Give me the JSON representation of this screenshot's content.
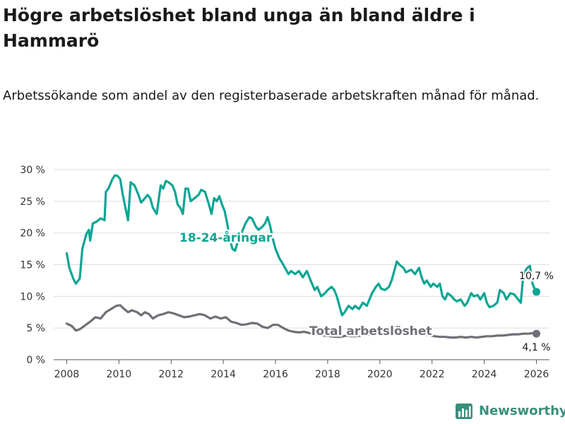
{
  "title": "Högre arbetslöshet bland unga än bland äldre i Hammarö",
  "subtitle": "Arbetssökande som andel av den registerbaserade arbetskraften månad för månad.",
  "brand": "Newsworthy",
  "colors": {
    "youth": "#0ea594",
    "total": "#6f6f76",
    "grid": "#dddddd",
    "brand": "#3a8f7c"
  },
  "chart_data": {
    "type": "line",
    "title": "Högre arbetslöshet bland unga än bland äldre i Hammarö",
    "xlabel": "",
    "ylabel": "",
    "xlim": [
      2007.5,
      2026.5
    ],
    "ylim": [
      0,
      30
    ],
    "x_ticks": [
      2008,
      2010,
      2012,
      2014,
      2016,
      2018,
      2020,
      2022,
      2024,
      2026
    ],
    "y_ticks": [
      0,
      5,
      10,
      15,
      20,
      25,
      30
    ],
    "y_tick_labels": [
      "0 %",
      "5 %",
      "10 %",
      "15 %",
      "20 %",
      "25 %",
      "30 %"
    ],
    "grid": true,
    "series": [
      {
        "name": "18-24-åringar",
        "label": "18-24-åringar",
        "color": "#0ea594",
        "end_label": "10,7 %",
        "points": [
          [
            2008.0,
            16.8
          ],
          [
            2008.1,
            14.5
          ],
          [
            2008.25,
            12.8
          ],
          [
            2008.35,
            12.0
          ],
          [
            2008.5,
            12.8
          ],
          [
            2008.6,
            17.5
          ],
          [
            2008.75,
            19.8
          ],
          [
            2008.85,
            20.5
          ],
          [
            2008.9,
            18.8
          ],
          [
            2009.0,
            21.5
          ],
          [
            2009.15,
            21.8
          ],
          [
            2009.3,
            22.3
          ],
          [
            2009.45,
            22.0
          ],
          [
            2009.5,
            26.5
          ],
          [
            2009.6,
            27.0
          ],
          [
            2009.75,
            28.5
          ],
          [
            2009.85,
            29.1
          ],
          [
            2009.95,
            29.0
          ],
          [
            2010.05,
            28.5
          ],
          [
            2010.15,
            26.0
          ],
          [
            2010.25,
            24.0
          ],
          [
            2010.35,
            22.0
          ],
          [
            2010.45,
            28.0
          ],
          [
            2010.6,
            27.5
          ],
          [
            2010.75,
            26.0
          ],
          [
            2010.85,
            24.8
          ],
          [
            2011.0,
            25.5
          ],
          [
            2011.1,
            26.0
          ],
          [
            2011.2,
            25.5
          ],
          [
            2011.3,
            24.0
          ],
          [
            2011.45,
            23.0
          ],
          [
            2011.6,
            27.5
          ],
          [
            2011.7,
            27.0
          ],
          [
            2011.8,
            28.2
          ],
          [
            2011.9,
            28.0
          ],
          [
            2012.05,
            27.5
          ],
          [
            2012.15,
            26.5
          ],
          [
            2012.25,
            24.5
          ],
          [
            2012.35,
            24.0
          ],
          [
            2012.45,
            23.0
          ],
          [
            2012.55,
            27.0
          ],
          [
            2012.65,
            27.0
          ],
          [
            2012.75,
            25.0
          ],
          [
            2012.9,
            25.5
          ],
          [
            2013.05,
            26.0
          ],
          [
            2013.15,
            26.8
          ],
          [
            2013.3,
            26.5
          ],
          [
            2013.45,
            24.5
          ],
          [
            2013.55,
            23.0
          ],
          [
            2013.65,
            25.5
          ],
          [
            2013.75,
            25.0
          ],
          [
            2013.85,
            25.8
          ],
          [
            2013.95,
            24.5
          ],
          [
            2014.05,
            23.5
          ],
          [
            2014.15,
            21.5
          ],
          [
            2014.25,
            19.0
          ],
          [
            2014.35,
            17.5
          ],
          [
            2014.45,
            17.2
          ],
          [
            2014.55,
            18.5
          ],
          [
            2014.7,
            20.0
          ],
          [
            2014.85,
            21.5
          ],
          [
            2015.0,
            22.5
          ],
          [
            2015.1,
            22.3
          ],
          [
            2015.25,
            21.0
          ],
          [
            2015.35,
            20.5
          ],
          [
            2015.5,
            21.0
          ],
          [
            2015.6,
            21.5
          ],
          [
            2015.7,
            22.5
          ],
          [
            2015.8,
            21.0
          ],
          [
            2015.9,
            19.0
          ],
          [
            2016.0,
            17.5
          ],
          [
            2016.15,
            16.0
          ],
          [
            2016.3,
            15.0
          ],
          [
            2016.5,
            13.5
          ],
          [
            2016.6,
            14.0
          ],
          [
            2016.75,
            13.5
          ],
          [
            2016.9,
            14.0
          ],
          [
            2017.05,
            13.0
          ],
          [
            2017.2,
            14.0
          ],
          [
            2017.35,
            12.5
          ],
          [
            2017.5,
            11.0
          ],
          [
            2017.6,
            11.5
          ],
          [
            2017.75,
            10.0
          ],
          [
            2017.9,
            10.5
          ],
          [
            2018.0,
            11.0
          ],
          [
            2018.15,
            11.5
          ],
          [
            2018.25,
            11.0
          ],
          [
            2018.35,
            10.0
          ],
          [
            2018.45,
            8.5
          ],
          [
            2018.55,
            7.0
          ],
          [
            2018.65,
            7.5
          ],
          [
            2018.8,
            8.5
          ],
          [
            2018.95,
            8.0
          ],
          [
            2019.05,
            8.5
          ],
          [
            2019.2,
            8.0
          ],
          [
            2019.35,
            9.0
          ],
          [
            2019.5,
            8.5
          ],
          [
            2019.6,
            9.5
          ],
          [
            2019.7,
            10.5
          ],
          [
            2019.85,
            11.5
          ],
          [
            2019.95,
            12.0
          ],
          [
            2020.05,
            11.2
          ],
          [
            2020.2,
            11.0
          ],
          [
            2020.35,
            11.5
          ],
          [
            2020.45,
            12.5
          ],
          [
            2020.55,
            14.0
          ],
          [
            2020.65,
            15.5
          ],
          [
            2020.75,
            15.0
          ],
          [
            2020.9,
            14.5
          ],
          [
            2021.0,
            13.8
          ],
          [
            2021.1,
            14.0
          ],
          [
            2021.2,
            14.2
          ],
          [
            2021.35,
            13.5
          ],
          [
            2021.5,
            14.5
          ],
          [
            2021.6,
            13.0
          ],
          [
            2021.7,
            12.0
          ],
          [
            2021.8,
            12.5
          ],
          [
            2021.95,
            11.5
          ],
          [
            2022.05,
            12.0
          ],
          [
            2022.2,
            11.5
          ],
          [
            2022.3,
            12.0
          ],
          [
            2022.4,
            10.0
          ],
          [
            2022.5,
            9.5
          ],
          [
            2022.6,
            10.5
          ],
          [
            2022.75,
            10.0
          ],
          [
            2022.85,
            9.5
          ],
          [
            2022.95,
            9.2
          ],
          [
            2023.1,
            9.5
          ],
          [
            2023.25,
            8.5
          ],
          [
            2023.35,
            9.0
          ],
          [
            2023.5,
            10.5
          ],
          [
            2023.6,
            10.0
          ],
          [
            2023.75,
            10.2
          ],
          [
            2023.85,
            9.5
          ],
          [
            2024.0,
            10.5
          ],
          [
            2024.1,
            9.0
          ],
          [
            2024.2,
            8.3
          ],
          [
            2024.35,
            8.5
          ],
          [
            2024.5,
            9.0
          ],
          [
            2024.6,
            11.0
          ],
          [
            2024.75,
            10.5
          ],
          [
            2024.85,
            9.5
          ],
          [
            2025.0,
            10.5
          ],
          [
            2025.15,
            10.3
          ],
          [
            2025.3,
            9.5
          ],
          [
            2025.4,
            9.0
          ],
          [
            2025.5,
            13.5
          ],
          [
            2025.65,
            14.5
          ],
          [
            2025.75,
            14.8
          ],
          [
            2025.85,
            12.0
          ],
          [
            2025.95,
            11.0
          ],
          [
            2026.0,
            10.7
          ]
        ]
      },
      {
        "name": "Total arbetslöshet",
        "label": "Total arbetslöshet",
        "color": "#6f6f76",
        "end_label": "4,1 %",
        "points": [
          [
            2008.0,
            5.7
          ],
          [
            2008.2,
            5.3
          ],
          [
            2008.35,
            4.6
          ],
          [
            2008.5,
            4.8
          ],
          [
            2008.7,
            5.4
          ],
          [
            2008.9,
            6.0
          ],
          [
            2009.1,
            6.7
          ],
          [
            2009.3,
            6.5
          ],
          [
            2009.5,
            7.5
          ],
          [
            2009.7,
            8.0
          ],
          [
            2009.9,
            8.5
          ],
          [
            2010.05,
            8.6
          ],
          [
            2010.2,
            8.0
          ],
          [
            2010.35,
            7.5
          ],
          [
            2010.5,
            7.8
          ],
          [
            2010.7,
            7.5
          ],
          [
            2010.85,
            7.0
          ],
          [
            2011.0,
            7.5
          ],
          [
            2011.15,
            7.2
          ],
          [
            2011.3,
            6.5
          ],
          [
            2011.5,
            7.0
          ],
          [
            2011.7,
            7.2
          ],
          [
            2011.9,
            7.5
          ],
          [
            2012.1,
            7.3
          ],
          [
            2012.3,
            7.0
          ],
          [
            2012.5,
            6.7
          ],
          [
            2012.7,
            6.8
          ],
          [
            2012.9,
            7.0
          ],
          [
            2013.1,
            7.2
          ],
          [
            2013.3,
            7.0
          ],
          [
            2013.5,
            6.5
          ],
          [
            2013.7,
            6.8
          ],
          [
            2013.9,
            6.5
          ],
          [
            2014.1,
            6.7
          ],
          [
            2014.3,
            6.0
          ],
          [
            2014.5,
            5.8
          ],
          [
            2014.7,
            5.5
          ],
          [
            2014.9,
            5.6
          ],
          [
            2015.1,
            5.8
          ],
          [
            2015.3,
            5.7
          ],
          [
            2015.5,
            5.2
          ],
          [
            2015.7,
            5.0
          ],
          [
            2015.9,
            5.5
          ],
          [
            2016.1,
            5.5
          ],
          [
            2016.3,
            5.0
          ],
          [
            2016.5,
            4.6
          ],
          [
            2016.7,
            4.4
          ],
          [
            2016.9,
            4.3
          ],
          [
            2017.1,
            4.4
          ],
          [
            2017.3,
            4.2
          ],
          [
            2017.5,
            4.0
          ],
          [
            2017.7,
            3.9
          ],
          [
            2017.9,
            3.8
          ],
          [
            2018.1,
            3.7
          ],
          [
            2018.3,
            3.6
          ],
          [
            2018.5,
            3.6
          ],
          [
            2018.7,
            3.8
          ],
          [
            2018.9,
            3.7
          ],
          [
            2019.1,
            3.7
          ],
          [
            2019.3,
            3.8
          ],
          [
            2019.5,
            3.9
          ],
          [
            2019.7,
            4.0
          ],
          [
            2019.9,
            4.1
          ],
          [
            2020.1,
            4.3
          ],
          [
            2020.3,
            4.6
          ],
          [
            2020.5,
            4.8
          ],
          [
            2020.7,
            4.9
          ],
          [
            2020.9,
            4.7
          ],
          [
            2021.1,
            4.6
          ],
          [
            2021.3,
            4.4
          ],
          [
            2021.5,
            4.2
          ],
          [
            2021.7,
            4.0
          ],
          [
            2021.9,
            3.8
          ],
          [
            2022.1,
            3.7
          ],
          [
            2022.3,
            3.6
          ],
          [
            2022.5,
            3.6
          ],
          [
            2022.7,
            3.5
          ],
          [
            2022.9,
            3.5
          ],
          [
            2023.1,
            3.6
          ],
          [
            2023.3,
            3.5
          ],
          [
            2023.5,
            3.6
          ],
          [
            2023.7,
            3.5
          ],
          [
            2023.9,
            3.6
          ],
          [
            2024.1,
            3.7
          ],
          [
            2024.3,
            3.7
          ],
          [
            2024.5,
            3.8
          ],
          [
            2024.7,
            3.8
          ],
          [
            2024.9,
            3.9
          ],
          [
            2025.1,
            4.0
          ],
          [
            2025.3,
            4.0
          ],
          [
            2025.5,
            4.1
          ],
          [
            2025.7,
            4.1
          ],
          [
            2025.85,
            4.2
          ],
          [
            2026.0,
            4.1
          ]
        ]
      }
    ]
  }
}
